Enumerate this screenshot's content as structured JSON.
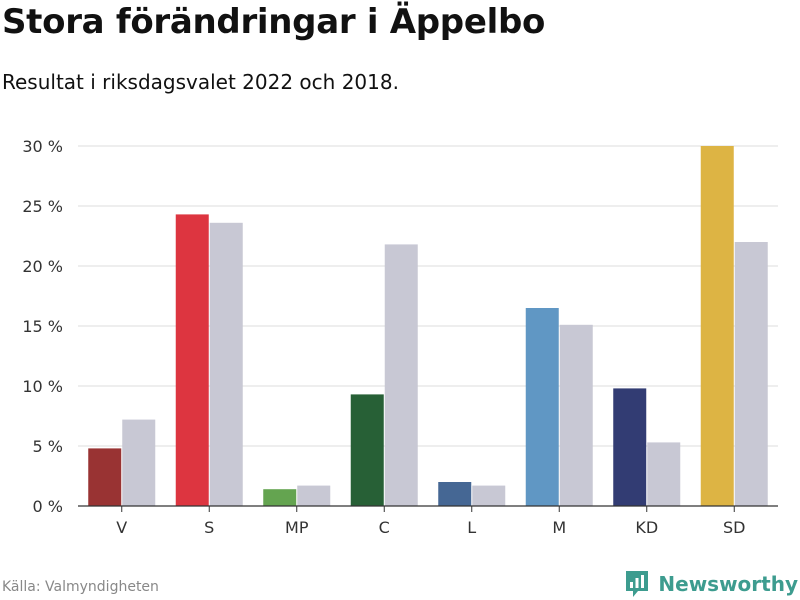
{
  "header": {
    "title": "Stora förändringar i Äppelbo",
    "subtitle": "Resultat i riksdagsvalet 2022 och 2018."
  },
  "footer": {
    "source": "Källa: Valmyndigheten",
    "brand": "Newsworthy",
    "brand_color": "#3d9c8f"
  },
  "chart_data": {
    "type": "bar",
    "title": "Stora förändringar i Äppelbo",
    "subtitle": "Resultat i riksdagsvalet 2022 och 2018.",
    "xlabel": "",
    "ylabel": "",
    "ylim": [
      0,
      30
    ],
    "yticks": [
      0,
      5,
      10,
      15,
      20,
      25,
      30
    ],
    "ytick_labels": [
      "0 %",
      "5 %",
      "10 %",
      "15 %",
      "20 %",
      "25 %",
      "30 %"
    ],
    "grid": true,
    "categories": [
      "V",
      "S",
      "MP",
      "C",
      "L",
      "M",
      "KD",
      "SD"
    ],
    "colors_2022": [
      "#993333",
      "#dd3540",
      "#64a450",
      "#276036",
      "#456794",
      "#6097c4",
      "#323c73",
      "#ddb444"
    ],
    "series": [
      {
        "name": "2022",
        "values": [
          4.8,
          24.3,
          1.4,
          9.3,
          2.0,
          16.5,
          9.8,
          30.0
        ]
      },
      {
        "name": "2018",
        "values": [
          7.2,
          23.6,
          1.7,
          21.8,
          1.7,
          15.1,
          5.3,
          22.0
        ],
        "color": "#c8c8d4"
      }
    ]
  }
}
